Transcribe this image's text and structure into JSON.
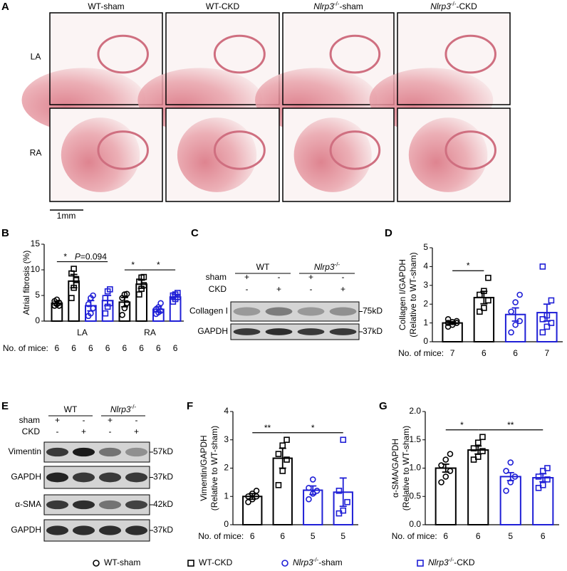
{
  "panel_letters": [
    "A",
    "B",
    "C",
    "D",
    "E",
    "F",
    "G"
  ],
  "histology": {
    "columns": [
      {
        "text": "WT-sham"
      },
      {
        "text": "WT-CKD"
      },
      {
        "gene": "Nlrp3",
        "sup": "-/-",
        "rest": "-sham"
      },
      {
        "gene": "Nlrp3",
        "sup": "-/-",
        "rest": "-CKD"
      }
    ],
    "rows": [
      "LA",
      "RA"
    ],
    "scale_bar": "1mm"
  },
  "blot_c": {
    "groups": [
      {
        "text": "WT"
      },
      {
        "gene": "Nlrp3",
        "sup": "-/-"
      }
    ],
    "conditions": [
      {
        "name": "sham",
        "signs": [
          "+",
          "-",
          "+",
          "-"
        ]
      },
      {
        "name": "CKD",
        "signs": [
          "-",
          "+",
          "-",
          "+"
        ]
      }
    ],
    "rows": [
      {
        "name": "Collagen I",
        "size": "75kD"
      },
      {
        "name": "GAPDH",
        "size": "37kD"
      }
    ]
  },
  "blot_e": {
    "groups": [
      {
        "text": "WT"
      },
      {
        "gene": "Nlrp3",
        "sup": "-/-"
      }
    ],
    "conditions": [
      {
        "name": "sham",
        "signs": [
          "+",
          "-",
          "+",
          "-"
        ]
      },
      {
        "name": "CKD",
        "signs": [
          "-",
          "+",
          "-",
          "+"
        ]
      }
    ],
    "rows": [
      {
        "name": "Vimentin",
        "size": "57kD"
      },
      {
        "name": "GAPDH",
        "size": "37kD"
      },
      {
        "name": "α-SMA",
        "size": "42kD"
      },
      {
        "name": "GAPDH",
        "size": "37kD"
      }
    ]
  },
  "legend": [
    {
      "label": {
        "text": "WT-sham"
      },
      "color": "#000000",
      "marker": "circle"
    },
    {
      "label": {
        "text": "WT-CKD"
      },
      "color": "#000000",
      "marker": "square"
    },
    {
      "label": {
        "gene": "Nlrp3",
        "sup": "-/-",
        "rest": "-sham"
      },
      "color": "#1f1fd6",
      "marker": "circle"
    },
    {
      "label": {
        "gene": "Nlrp3",
        "sup": "-/-",
        "rest": "-CKD"
      },
      "color": "#1f1fd6",
      "marker": "square"
    }
  ],
  "chart_data": [
    {
      "type": "bar",
      "ylabel": [
        "Atrial fibrosis (%)"
      ],
      "categories": [
        "LA",
        "RA"
      ],
      "ylim": [
        0,
        15
      ],
      "yticks": [
        0,
        5,
        10,
        15
      ],
      "n_label": "No. of mice:",
      "series": [
        {
          "color": "#000000",
          "marker": "circle",
          "values": [
            3.5,
            3.7
          ],
          "errors": [
            0.4,
            0.9
          ],
          "n": [
            6,
            6
          ],
          "points": [
            [
              3.0,
              3.3,
              3.6,
              3.9,
              4.2,
              3.0
            ],
            [
              1.2,
              2.5,
              3.5,
              4.5,
              5.2,
              5.3
            ]
          ]
        },
        {
          "color": "#000000",
          "marker": "square",
          "values": [
            7.8,
            7.2
          ],
          "errors": [
            1.3,
            0.8
          ],
          "n": [
            6,
            6
          ],
          "points": [
            [
              4.5,
              6.5,
              8.2,
              9.3,
              10.2,
              8.0
            ],
            [
              5.2,
              6.3,
              7.0,
              7.7,
              8.5,
              8.6
            ]
          ]
        },
        {
          "color": "#1f1fd6",
          "marker": "circle",
          "values": [
            3.0,
            2.3
          ],
          "errors": [
            1.0,
            0.5
          ],
          "n": [
            6,
            6
          ],
          "points": [
            [
              1.0,
              1.5,
              2.5,
              3.3,
              4.5,
              5.0
            ],
            [
              1.4,
              1.7,
              2.0,
              2.3,
              2.7,
              3.5
            ]
          ]
        },
        {
          "color": "#1f1fd6",
          "marker": "square",
          "values": [
            4.0,
            4.7
          ],
          "errors": [
            1.0,
            0.5
          ],
          "n": [
            6,
            6
          ],
          "points": [
            [
              1.5,
              2.8,
              3.5,
              4.5,
              5.8,
              6.2
            ],
            [
              3.8,
              4.3,
              4.7,
              5.0,
              5.2,
              5.5
            ]
          ]
        }
      ],
      "significance": [
        {
          "between": [
            [
              0,
              0
            ],
            [
              1,
              0
            ]
          ],
          "label": {
            "text": "*"
          }
        },
        {
          "between": [
            [
              1,
              0
            ],
            [
              3,
              0
            ]
          ],
          "label": {
            "italic": "P",
            "text": "=0.094"
          }
        },
        {
          "between": [
            [
              0,
              1
            ],
            [
              1,
              1
            ]
          ],
          "label": {
            "text": "*"
          }
        },
        {
          "between": [
            [
              1,
              1
            ],
            [
              3,
              1
            ]
          ],
          "label": {
            "text": "*"
          }
        }
      ]
    },
    {
      "type": "bar",
      "ylabel": [
        "Collagen I/GAPDH",
        "(Relative to WT-sham)"
      ],
      "ylim": [
        0,
        5
      ],
      "yticks": [
        0,
        1,
        2,
        3,
        4,
        5
      ],
      "n_label": "No. of mice:",
      "series": [
        {
          "color": "#000000",
          "marker": "circle",
          "values": [
            1.0
          ],
          "errors": [
            0.07
          ],
          "n": [
            7
          ],
          "points": [
            [
              0.8,
              0.9,
              1.0,
              1.0,
              1.05,
              1.1,
              1.2
            ]
          ]
        },
        {
          "color": "#000000",
          "marker": "square",
          "values": [
            2.35
          ],
          "errors": [
            0.33
          ],
          "n": [
            6
          ],
          "points": [
            [
              1.6,
              1.8,
              2.2,
              2.5,
              2.7,
              3.4
            ]
          ]
        },
        {
          "color": "#1f1fd6",
          "marker": "circle",
          "values": [
            1.45
          ],
          "errors": [
            0.35
          ],
          "n": [
            6
          ],
          "points": [
            [
              0.5,
              0.9,
              1.1,
              1.6,
              2.1,
              2.5
            ]
          ]
        },
        {
          "color": "#1f1fd6",
          "marker": "square",
          "values": [
            1.55
          ],
          "errors": [
            0.45
          ],
          "n": [
            7
          ],
          "points": [
            [
              0.5,
              0.8,
              1.0,
              1.2,
              1.4,
              2.2,
              4.0
            ]
          ]
        }
      ],
      "significance": [
        {
          "between": [
            [
              0,
              0
            ],
            [
              1,
              0
            ]
          ],
          "label": {
            "text": "*"
          }
        }
      ]
    },
    {
      "type": "bar",
      "ylabel": [
        "Vimentin/GAPDH",
        "(Relative to WT-sham)"
      ],
      "ylim": [
        0,
        4
      ],
      "yticks": [
        0,
        1,
        2,
        3,
        4
      ],
      "n_label": "No. of mice:",
      "series": [
        {
          "color": "#000000",
          "marker": "circle",
          "values": [
            1.0
          ],
          "errors": [
            0.1
          ],
          "n": [
            6
          ],
          "points": [
            [
              0.8,
              0.9,
              1.0,
              1.0,
              1.1,
              1.2
            ]
          ]
        },
        {
          "color": "#000000",
          "marker": "square",
          "values": [
            2.35
          ],
          "errors": [
            0.35
          ],
          "n": [
            6
          ],
          "points": [
            [
              1.4,
              1.9,
              2.3,
              2.5,
              2.8,
              3.0
            ]
          ]
        },
        {
          "color": "#1f1fd6",
          "marker": "circle",
          "values": [
            1.22
          ],
          "errors": [
            0.15
          ],
          "n": [
            5
          ],
          "points": [
            [
              0.9,
              1.1,
              1.2,
              1.3,
              1.6
            ]
          ]
        },
        {
          "color": "#1f1fd6",
          "marker": "square",
          "values": [
            1.15
          ],
          "errors": [
            0.5
          ],
          "n": [
            5
          ],
          "points": [
            [
              0.4,
              0.5,
              0.8,
              1.2,
              3.0
            ]
          ]
        }
      ],
      "significance": [
        {
          "between": [
            [
              0,
              0
            ],
            [
              1,
              0
            ]
          ],
          "label": {
            "text": "**"
          }
        },
        {
          "between": [
            [
              1,
              0
            ],
            [
              3,
              0
            ]
          ],
          "label": {
            "text": "*"
          }
        }
      ]
    },
    {
      "type": "bar",
      "ylabel": [
        "α-SMA/GAPDH",
        "(Relative to WT-sham)"
      ],
      "ylim": [
        0,
        2
      ],
      "yticks": [
        {
          "value": 0,
          "label": "0.0"
        },
        {
          "value": 0.5,
          "label": "0.5"
        },
        {
          "value": 1,
          "label": "1.0"
        },
        {
          "value": 1.5,
          "label": "1.5"
        },
        {
          "value": 2,
          "label": "2.0"
        }
      ],
      "n_label": "No. of mice:",
      "series": [
        {
          "color": "#000000",
          "marker": "circle",
          "values": [
            1.0
          ],
          "errors": [
            0.07
          ],
          "n": [
            6
          ],
          "points": [
            [
              0.75,
              0.85,
              0.95,
              1.05,
              1.15,
              1.25
            ]
          ]
        },
        {
          "color": "#000000",
          "marker": "square",
          "values": [
            1.32
          ],
          "errors": [
            0.07
          ],
          "n": [
            6
          ],
          "points": [
            [
              1.15,
              1.2,
              1.3,
              1.35,
              1.45,
              1.55
            ]
          ]
        },
        {
          "color": "#1f1fd6",
          "marker": "circle",
          "values": [
            0.85
          ],
          "errors": [
            0.07
          ],
          "n": [
            5
          ],
          "points": [
            [
              0.6,
              0.75,
              0.85,
              0.95,
              1.1
            ]
          ]
        },
        {
          "color": "#1f1fd6",
          "marker": "square",
          "values": [
            0.83
          ],
          "errors": [
            0.07
          ],
          "n": [
            6
          ],
          "points": [
            [
              0.65,
              0.7,
              0.8,
              0.85,
              0.95,
              1.0
            ]
          ]
        }
      ],
      "significance": [
        {
          "between": [
            [
              0,
              0
            ],
            [
              1,
              0
            ]
          ],
          "label": {
            "text": "*"
          }
        },
        {
          "between": [
            [
              1,
              0
            ],
            [
              3,
              0
            ]
          ],
          "label": {
            "text": "**"
          }
        }
      ]
    }
  ]
}
